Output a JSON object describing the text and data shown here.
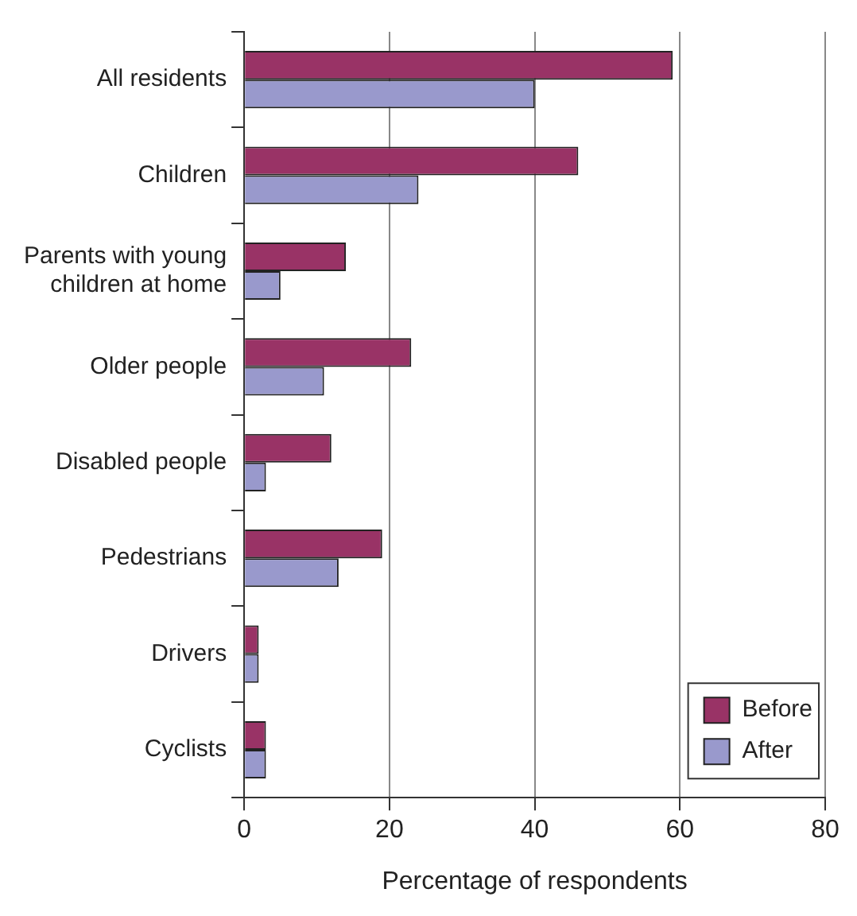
{
  "chart_data": {
    "type": "bar",
    "orientation": "horizontal",
    "xlabel": "Percentage of respondents",
    "categories": [
      "All residents",
      "Children",
      "Parents with young children at home",
      "Older people",
      "Disabled people",
      "Pedestrians",
      "Drivers",
      "Cyclists"
    ],
    "series": [
      {
        "name": "Before",
        "color": "#993366",
        "values": [
          59,
          46,
          14,
          23,
          12,
          19,
          2,
          3
        ]
      },
      {
        "name": "After",
        "color": "#9999cc",
        "values": [
          40,
          24,
          5,
          11,
          3,
          13,
          2,
          3
        ]
      }
    ],
    "xlim": [
      0,
      80
    ],
    "xticks": [
      0,
      20,
      40,
      60,
      80
    ],
    "grid": "x",
    "legend": "bottom right"
  }
}
